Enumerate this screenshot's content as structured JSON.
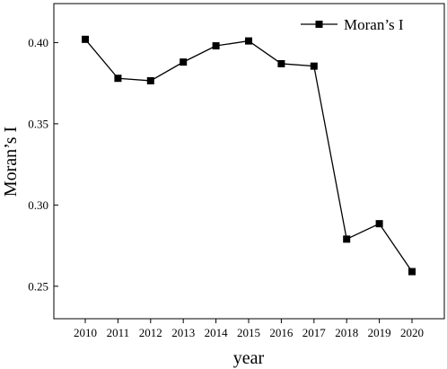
{
  "chart_data": {
    "type": "line",
    "xlabel": "year",
    "ylabel": "Moran’s I",
    "x": [
      "2010",
      "2011",
      "2012",
      "2013",
      "2014",
      "2015",
      "2016",
      "2017",
      "2018",
      "2019",
      "2020"
    ],
    "series": [
      {
        "name": "Moran’s I",
        "values": [
          0.402,
          0.378,
          0.3765,
          0.388,
          0.398,
          0.401,
          0.387,
          0.3855,
          0.279,
          0.2885,
          0.259
        ]
      }
    ],
    "ylim": [
      0.23,
      0.424
    ],
    "yticks": [
      "0.25",
      "0.30",
      "0.35",
      "0.40"
    ],
    "grid": false,
    "legend_position": "top-right",
    "colors": {
      "line": "#000000",
      "marker": "#000000",
      "axis": "#000000"
    },
    "marker": "square"
  }
}
